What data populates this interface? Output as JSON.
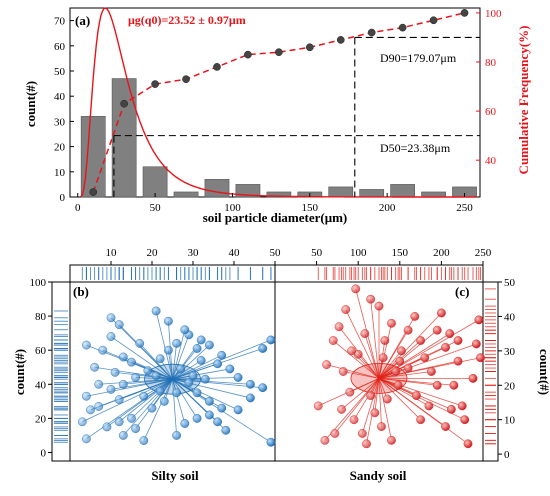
{
  "colors": {
    "bar": "#808080",
    "red": "#e8141b",
    "silty": "#1f6fb5",
    "sandy": "#e2231a",
    "dash": "#000000"
  },
  "chart_data": [
    {
      "type": "bar",
      "panel": "(a)",
      "xlabel": "soil particle diameter(μm)",
      "ylabel": "count(#)",
      "y2label": "Cumulative Frequency(%)",
      "annotation_mu": "μg(q0)=23.52 ± 0.97μm",
      "annotation_d90": "D90=179.07μm",
      "annotation_d50": "D50=23.38μm",
      "xlim": [
        -5,
        260
      ],
      "ylim": [
        0,
        75
      ],
      "y2lim": [
        25,
        102
      ],
      "xticks": [
        0,
        50,
        100,
        150,
        200,
        250
      ],
      "yticks": [
        0,
        10,
        20,
        30,
        40,
        50,
        60,
        70
      ],
      "y2ticks": [
        40,
        60,
        80,
        100
      ],
      "bars": {
        "x": [
          10,
          30,
          50,
          70,
          90,
          110,
          130,
          150,
          170,
          190,
          210,
          230,
          250
        ],
        "counts": [
          32,
          47,
          12,
          2,
          7,
          5,
          2,
          2,
          4,
          3,
          5,
          2,
          4
        ]
      },
      "cumulative": {
        "x": [
          10,
          30,
          50,
          70,
          90,
          110,
          130,
          150,
          170,
          190,
          210,
          230,
          250
        ],
        "percent": [
          27,
          63,
          71,
          73,
          78,
          83,
          84,
          86,
          89,
          92,
          94,
          97,
          100
        ]
      },
      "fit_peak_x": 18,
      "fit_peak_count": 75,
      "d50": 23.38,
      "d90": 179.07
    },
    {
      "type": "scatter",
      "panel": "(b)",
      "name": "Silty soil",
      "xlim": [
        0,
        50
      ],
      "ylim": [
        -5,
        100
      ],
      "xticks": [
        10,
        20,
        30,
        40,
        50
      ],
      "yticks": [
        0,
        20,
        40,
        60,
        80,
        100
      ],
      "ylabel": "count(#)",
      "center": [
        25,
        43
      ],
      "points": [
        [
          5,
          25
        ],
        [
          3,
          18
        ],
        [
          4,
          8
        ],
        [
          4,
          33
        ],
        [
          7,
          40
        ],
        [
          6,
          50
        ],
        [
          8,
          60
        ],
        [
          4,
          63
        ],
        [
          10,
          68
        ],
        [
          10,
          79
        ],
        [
          12,
          75
        ],
        [
          17,
          64
        ],
        [
          7,
          27
        ],
        [
          9,
          15
        ],
        [
          12,
          18
        ],
        [
          13,
          10
        ],
        [
          15,
          20
        ],
        [
          16,
          14
        ],
        [
          18,
          7
        ],
        [
          10,
          37
        ],
        [
          13,
          40
        ],
        [
          16,
          44
        ],
        [
          19,
          48
        ],
        [
          22,
          55
        ],
        [
          24,
          60
        ],
        [
          26,
          64
        ],
        [
          29,
          69
        ],
        [
          21,
          83
        ],
        [
          24,
          77
        ],
        [
          28,
          72
        ],
        [
          32,
          66
        ],
        [
          31,
          61
        ],
        [
          34,
          63
        ],
        [
          37,
          57
        ],
        [
          32,
          54
        ],
        [
          36,
          52
        ],
        [
          39,
          49
        ],
        [
          29,
          41
        ],
        [
          31,
          35
        ],
        [
          34,
          30
        ],
        [
          37,
          26
        ],
        [
          41,
          44
        ],
        [
          44,
          40
        ],
        [
          47,
          61
        ],
        [
          49,
          66
        ],
        [
          26,
          10
        ],
        [
          28,
          17
        ],
        [
          31,
          20
        ],
        [
          34,
          22
        ],
        [
          36,
          18
        ],
        [
          38,
          13
        ],
        [
          41,
          25
        ],
        [
          44,
          32
        ],
        [
          47,
          38
        ],
        [
          49,
          6
        ],
        [
          20,
          26
        ],
        [
          22,
          36
        ],
        [
          15,
          53
        ],
        [
          13,
          56
        ],
        [
          11,
          47
        ],
        [
          12,
          31
        ],
        [
          30,
          45
        ],
        [
          33,
          43
        ],
        [
          27,
          49
        ],
        [
          21,
          45
        ],
        [
          18,
          33
        ],
        [
          23,
          30
        ],
        [
          26,
          35
        ]
      ]
    },
    {
      "type": "scatter",
      "panel": "(c)",
      "name": "Sandy soil",
      "xlim": [
        0,
        250
      ],
      "ylim": [
        -2,
        50
      ],
      "xticks": [
        50,
        100,
        150,
        200,
        250
      ],
      "yticks": [
        0,
        10,
        20,
        30,
        40,
        50
      ],
      "ylabel": "count(#)",
      "center": [
        125,
        22
      ],
      "points": [
        [
          52,
          14
        ],
        [
          60,
          4
        ],
        [
          72,
          6
        ],
        [
          80,
          13
        ],
        [
          62,
          26
        ],
        [
          70,
          33
        ],
        [
          77,
          37
        ],
        [
          85,
          42
        ],
        [
          97,
          48
        ],
        [
          115,
          45
        ],
        [
          125,
          43
        ],
        [
          82,
          24
        ],
        [
          90,
          18
        ],
        [
          95,
          10
        ],
        [
          105,
          6
        ],
        [
          110,
          3
        ],
        [
          115,
          17
        ],
        [
          120,
          12
        ],
        [
          128,
          8
        ],
        [
          135,
          16
        ],
        [
          140,
          4
        ],
        [
          148,
          20
        ],
        [
          152,
          30
        ],
        [
          160,
          36
        ],
        [
          168,
          40
        ],
        [
          175,
          33
        ],
        [
          180,
          28
        ],
        [
          188,
          24
        ],
        [
          195,
          36
        ],
        [
          200,
          41
        ],
        [
          205,
          31
        ],
        [
          210,
          35
        ],
        [
          215,
          20
        ],
        [
          220,
          27
        ],
        [
          225,
          14
        ],
        [
          228,
          10
        ],
        [
          232,
          3
        ],
        [
          238,
          22
        ],
        [
          242,
          32
        ],
        [
          245,
          39
        ],
        [
          247,
          28
        ],
        [
          132,
          33
        ],
        [
          140,
          38
        ],
        [
          150,
          27
        ],
        [
          160,
          25
        ],
        [
          170,
          17
        ],
        [
          175,
          10
        ],
        [
          185,
          14
        ],
        [
          195,
          20
        ],
        [
          205,
          8
        ],
        [
          212,
          13
        ],
        [
          220,
          33
        ],
        [
          100,
          29
        ],
        [
          108,
          35
        ],
        [
          92,
          30
        ],
        [
          130,
          28
        ],
        [
          145,
          24
        ]
      ]
    }
  ],
  "labels": {
    "silty": "Silty soil",
    "sandy": "Sandy soil"
  }
}
